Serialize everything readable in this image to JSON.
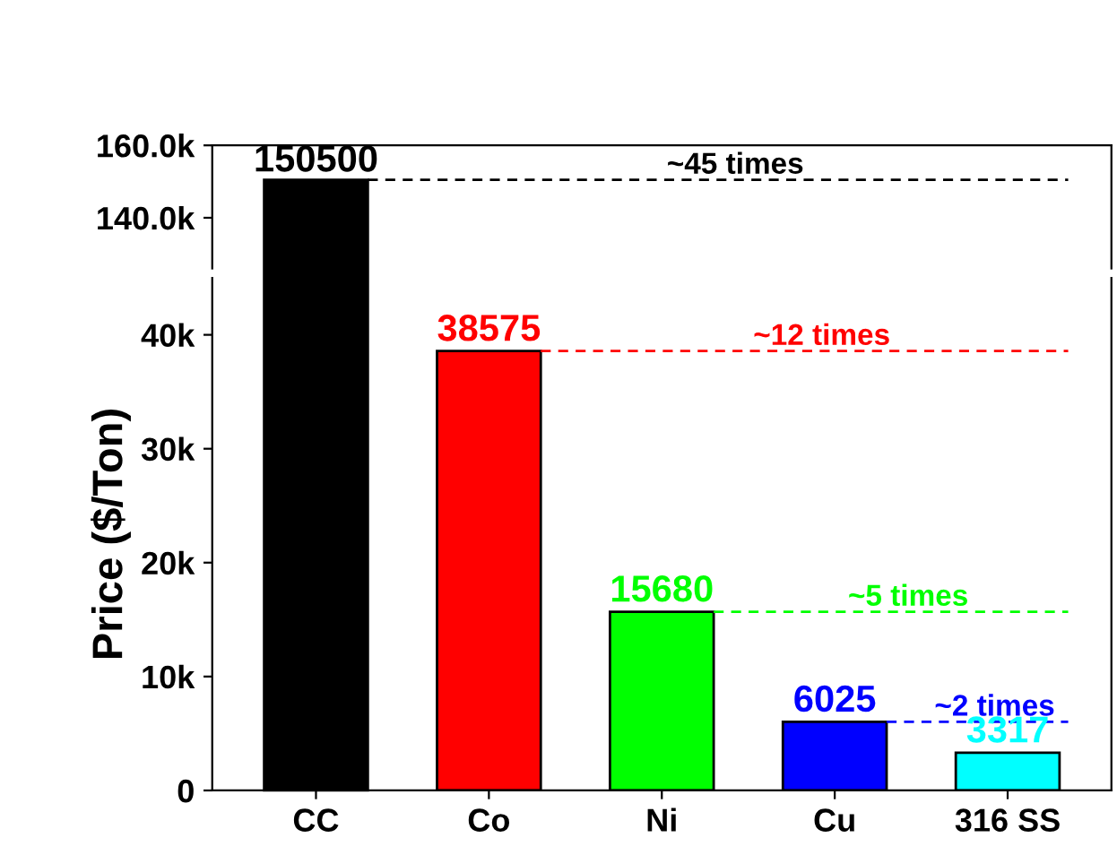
{
  "chart_data": [
    {
      "type": "bar",
      "categories": [
        null,
        null,
        null,
        null,
        null
      ],
      "values": [
        150500,
        null,
        null,
        null,
        null
      ],
      "colors": [
        "#000000",
        "#ff0000",
        "#00ff00",
        "#0000ff",
        "#00ffff"
      ],
      "ylim": [
        126000,
        160000
      ],
      "yticks": [
        {
          "value": 140000,
          "label": "140.0k"
        },
        {
          "value": 160000,
          "label": "160.0k"
        }
      ],
      "data_labels": true,
      "tick_labels": "y",
      "legend": false,
      "ref_lines": [
        {
          "axis": "y",
          "value": 150500,
          "label": "~45 times",
          "color": "#000000",
          "line_style": "dashed"
        }
      ]
    },
    {
      "type": "bar",
      "categories": [
        "CC",
        "Co",
        "Ni",
        "Cu",
        "316 SS"
      ],
      "values": [
        null,
        38575,
        15680,
        6025,
        3317
      ],
      "colors": [
        "#000000",
        "#ff0000",
        "#00ff00",
        "#0000ff",
        "#00ffff"
      ],
      "ylim": [
        0,
        45000
      ],
      "yticks": [
        0,
        {
          "value": 10000,
          "label": "10k"
        },
        {
          "value": 20000,
          "label": "20k"
        },
        {
          "value": 30000,
          "label": "30k"
        },
        {
          "value": 40000,
          "label": "40k"
        }
      ],
      "ylabel": "Price ($/Ton)",
      "value_labels": [
        null,
        "38575",
        "15680",
        "6025",
        "3317"
      ],
      "legend": false,
      "ref_lines": [
        {
          "axis": "y",
          "value": 38575,
          "label": "~12 times",
          "color": "#ff0000",
          "line_style": "dashed"
        },
        {
          "axis": "y",
          "value": 15680,
          "label": "~5 times",
          "color": "#00ff00",
          "line_style": "dashed"
        },
        {
          "axis": "y",
          "value": 6025,
          "label": "~2 times",
          "color": "#0000ff",
          "line_style": "dashed"
        }
      ]
    }
  ]
}
